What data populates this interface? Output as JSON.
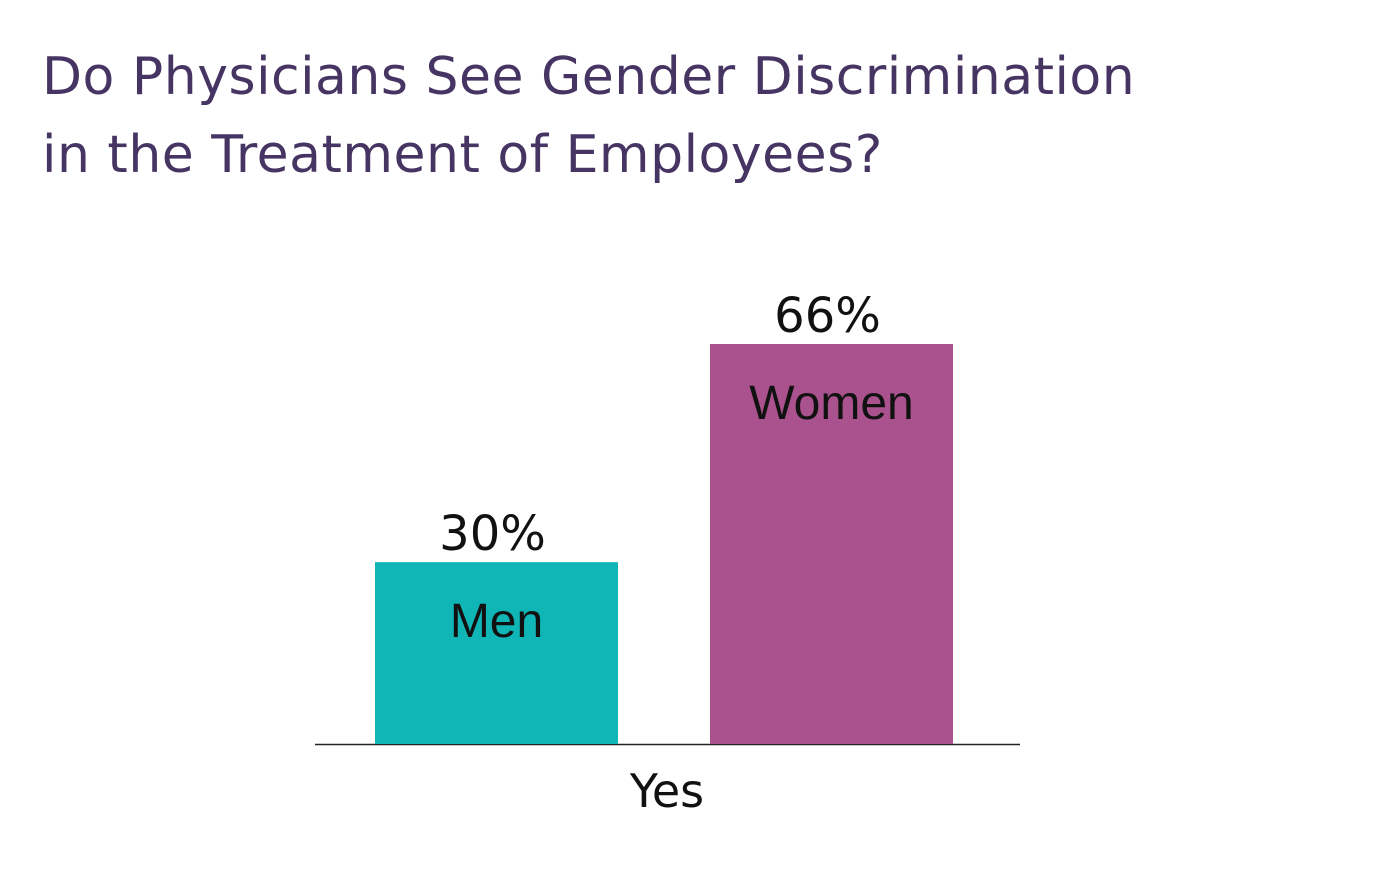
{
  "title_lines": [
    "Do Physicians See Gender Discrimination",
    "in the Treatment of Employees?"
  ],
  "chart_data": {
    "type": "bar",
    "title": "Do Physicians See Gender Discrimination in the Treatment of Employees?",
    "categories": [
      "Yes"
    ],
    "series": [
      {
        "name": "Men",
        "values": [
          30
        ],
        "value_label": "30%",
        "color": "#10b5b5"
      },
      {
        "name": "Women",
        "values": [
          66
        ],
        "value_label": "66%",
        "color": "#a9528d"
      }
    ],
    "ylim": [
      0,
      100
    ],
    "grid": false,
    "legend": "inside-bars"
  }
}
